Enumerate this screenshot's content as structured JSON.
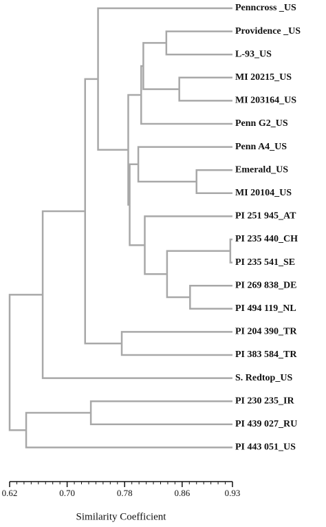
{
  "chart_data": {
    "type": "dendrogram",
    "leaves": [
      "Penncross _US",
      "Providence _US",
      "L-93_US",
      "MI 20215_US",
      "MI 203164_US",
      "Penn G2_US",
      "Penn A4_US",
      "Emerald_US",
      "MI 20104_US",
      "PI 251 945_AT",
      "PI 235 440_CH",
      "PI 235 541_SE",
      "PI 269 838_DE",
      "PI 494 119_NL",
      "PI 204 390_TR",
      "PI 383 584_TR",
      "S. Redtop_US",
      "PI 230 235_IR",
      "PI 439 027_RU",
      "PI 443 051_US"
    ],
    "merges": [
      [
        1,
        2
      ],
      [
        3,
        4
      ],
      [
        20,
        21
      ],
      [
        22,
        5
      ],
      [
        7,
        8
      ],
      [
        6,
        24
      ],
      [
        10,
        11
      ],
      [
        12,
        13
      ],
      [
        26,
        27
      ],
      [
        9,
        28
      ],
      [
        25,
        29
      ],
      [
        23,
        30
      ],
      [
        0,
        31
      ],
      [
        14,
        15
      ],
      [
        32,
        33
      ],
      [
        34,
        16
      ],
      [
        17,
        18
      ],
      [
        36,
        19
      ],
      [
        35,
        37
      ]
    ],
    "heights": [
      0.838,
      0.856,
      0.806,
      0.803,
      0.88,
      0.799,
      0.927,
      0.871,
      0.839,
      0.808,
      0.787,
      0.785,
      0.743,
      0.776,
      0.725,
      0.666,
      0.733,
      0.643,
      0.62
    ],
    "xlabel": "Similarity Coefficient",
    "xlim": [
      0.62,
      0.93
    ],
    "xticks": [
      0.62,
      {
        "value": 0.7,
        "label": "0.70"
      },
      0.78,
      0.86,
      0.93
    ],
    "xminor_ticks": [
      0.63,
      0.64,
      0.65,
      0.66,
      0.67,
      0.68,
      0.69,
      0.71,
      0.72,
      0.73,
      0.74,
      0.75,
      0.76,
      0.77,
      0.79,
      0.8,
      0.81,
      0.82,
      0.83,
      0.84,
      0.85,
      0.87,
      0.88,
      0.89,
      0.9,
      0.91,
      0.92
    ],
    "color": "#a8a8a8"
  }
}
